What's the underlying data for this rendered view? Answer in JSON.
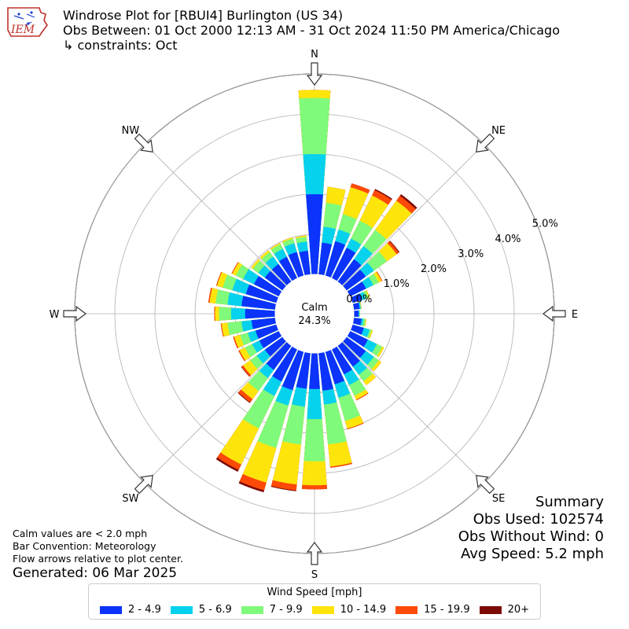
{
  "header": {
    "logo_text": "IEM",
    "title": "Windrose Plot for [RBUI4] Burlington (US 34)",
    "subtitle": "Obs Between: 01 Oct 2000 12:13 AM - 31 Oct 2024 11:50 PM America/Chicago",
    "constraints": "↳ constraints: Oct"
  },
  "notes": {
    "calm_note": "Calm values are < 2.0 mph",
    "bar_convention": "Bar Convention: Meteorology",
    "flow_note": "Flow arrows relative to plot center.",
    "generated": "Generated: 06 Mar 2025"
  },
  "summary": {
    "title": "Summary",
    "obs_used": "Obs Used: 102574",
    "obs_without_wind": "Obs Without Wind: 0",
    "avg_speed": "Avg Speed: 5.2 mph"
  },
  "legend": {
    "title": "Wind Speed [mph]",
    "items": [
      {
        "label": "2 - 4.9",
        "color": "#0b33fb"
      },
      {
        "label": "5 - 6.9",
        "color": "#06d2ee"
      },
      {
        "label": "7 - 9.9",
        "color": "#7ffa7a"
      },
      {
        "label": "10 - 14.9",
        "color": "#fde50c"
      },
      {
        "label": "15 - 19.9",
        "color": "#fd4a08"
      },
      {
        "label": "20+",
        "color": "#7c0a05"
      }
    ]
  },
  "chart_data": {
    "type": "windrose",
    "units": "%",
    "rlim": [
      0,
      5.0
    ],
    "rings": [
      0.0,
      1.0,
      2.0,
      3.0,
      4.0,
      5.0
    ],
    "ring_labels": [
      "0.0%",
      "1.0%",
      "2.0%",
      "3.0%",
      "4.0%",
      "5.0%"
    ],
    "compass_labels": [
      "N",
      "NE",
      "E",
      "SE",
      "S",
      "SW",
      "W",
      "NW"
    ],
    "calm_label": "Calm",
    "calm_value": "24.3%",
    "bins": [
      "2 - 4.9",
      "5 - 6.9",
      "7 - 9.9",
      "10 - 14.9",
      "15 - 19.9",
      "20+"
    ],
    "directions": [
      0,
      10,
      20,
      30,
      40,
      50,
      60,
      70,
      80,
      90,
      100,
      110,
      120,
      130,
      140,
      150,
      160,
      170,
      180,
      190,
      200,
      210,
      220,
      230,
      240,
      250,
      260,
      270,
      280,
      290,
      300,
      310,
      320,
      330,
      340,
      350
    ],
    "cumulative": [
      [
        2.0,
        3.0,
        4.4,
        4.6,
        4.6,
        4.6
      ],
      [
        0.8,
        1.2,
        1.8,
        2.2,
        2.2,
        2.2
      ],
      [
        0.9,
        1.2,
        1.6,
        2.3,
        2.4,
        2.4
      ],
      [
        0.85,
        1.1,
        1.6,
        2.3,
        2.45,
        2.48
      ],
      [
        0.7,
        1.1,
        1.6,
        2.5,
        2.65,
        2.7
      ],
      [
        0.6,
        0.85,
        1.25,
        1.55,
        1.62,
        1.64
      ],
      [
        0.45,
        0.65,
        0.8,
        0.88,
        0.9,
        0.9
      ],
      [
        0.25,
        0.35,
        0.42,
        0.45,
        0.45,
        0.45
      ],
      [
        0.15,
        0.18,
        0.19,
        0.2,
        0.2,
        0.2
      ],
      [
        0.12,
        0.14,
        0.15,
        0.15,
        0.15,
        0.15
      ],
      [
        0.2,
        0.25,
        0.3,
        0.32,
        0.32,
        0.32
      ],
      [
        0.3,
        0.45,
        0.5,
        0.53,
        0.53,
        0.53
      ],
      [
        0.5,
        0.75,
        0.9,
        0.95,
        0.95,
        0.95
      ],
      [
        0.6,
        0.85,
        1.0,
        1.08,
        1.08,
        1.08
      ],
      [
        0.65,
        0.9,
        1.1,
        1.22,
        1.22,
        1.22
      ],
      [
        0.7,
        1.0,
        1.3,
        1.4,
        1.42,
        1.42
      ],
      [
        0.85,
        1.2,
        1.8,
        2.0,
        2.02,
        2.02
      ],
      [
        0.95,
        1.3,
        2.3,
        2.85,
        2.88,
        2.88
      ],
      [
        0.9,
        1.65,
        2.7,
        3.3,
        3.4,
        3.4
      ],
      [
        0.9,
        1.35,
        2.3,
        3.3,
        3.45,
        3.47
      ],
      [
        1.0,
        1.4,
        2.5,
        3.4,
        3.6,
        3.65
      ],
      [
        0.9,
        1.3,
        2.2,
        3.2,
        3.35,
        3.4
      ],
      [
        0.75,
        1.0,
        1.4,
        1.65,
        1.75,
        1.77
      ],
      [
        0.55,
        0.8,
        1.0,
        1.22,
        1.27,
        1.28
      ],
      [
        0.55,
        0.75,
        0.95,
        1.1,
        1.13,
        1.13
      ],
      [
        0.55,
        0.75,
        0.95,
        1.1,
        1.13,
        1.13
      ],
      [
        0.6,
        0.85,
        1.2,
        1.35,
        1.37,
        1.37
      ],
      [
        0.75,
        1.1,
        1.4,
        1.5,
        1.52,
        1.52
      ],
      [
        0.85,
        1.2,
        1.5,
        1.65,
        1.68,
        1.68
      ],
      [
        0.8,
        1.15,
        1.4,
        1.55,
        1.57,
        1.57
      ],
      [
        0.7,
        1.0,
        1.2,
        1.3,
        1.32,
        1.32
      ],
      [
        0.55,
        0.75,
        0.92,
        0.97,
        0.97,
        0.97
      ],
      [
        0.55,
        0.78,
        0.92,
        0.97,
        0.97,
        0.97
      ],
      [
        0.6,
        0.82,
        0.95,
        0.98,
        0.98,
        0.98
      ],
      [
        0.62,
        0.85,
        0.97,
        1.0,
        1.0,
        1.0
      ],
      [
        0.6,
        0.83,
        0.95,
        0.98,
        0.98,
        0.98
      ]
    ]
  }
}
